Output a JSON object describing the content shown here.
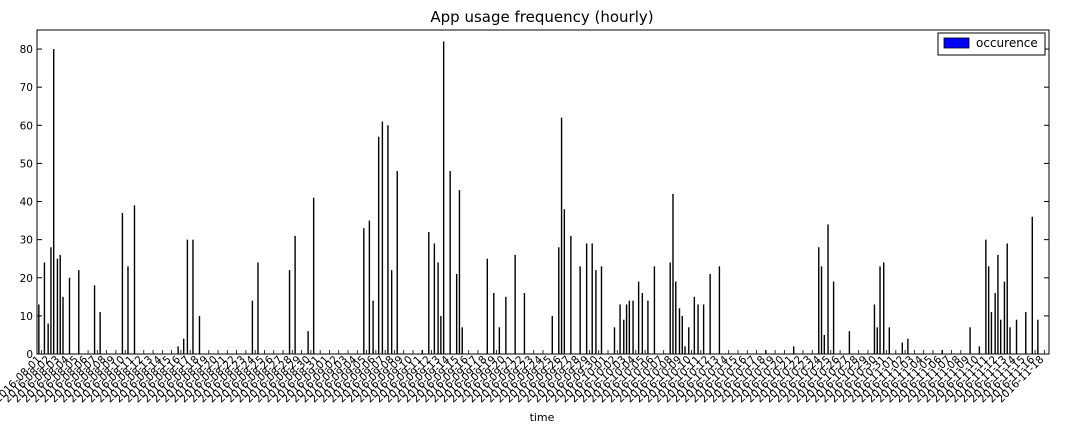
{
  "chart_data": {
    "type": "bar",
    "title": "App usage frequency (hourly)",
    "xlabel": "time",
    "ylabel": "",
    "ylim": [
      0,
      85
    ],
    "yticks": [
      0,
      10,
      20,
      30,
      40,
      50,
      60,
      70,
      80
    ],
    "legend": {
      "placement": "top-right",
      "label": "occurence",
      "color": "#0000ff"
    },
    "bar_color": "#000000",
    "grid": false,
    "x_tick_labels": [
      "2016-08-01",
      "2016-08-02",
      "2016-08-03",
      "2016-08-04",
      "2016-08-05",
      "2016-08-06",
      "2016-08-07",
      "2016-08-08",
      "2016-08-09",
      "2016-08-10",
      "2016-08-11",
      "2016-08-12",
      "2016-08-13",
      "2016-08-14",
      "2016-08-15",
      "2016-08-16",
      "2016-08-17",
      "2016-08-18",
      "2016-08-19",
      "2016-08-20",
      "2016-08-21",
      "2016-08-22",
      "2016-08-23",
      "2016-08-24",
      "2016-08-25",
      "2016-08-26",
      "2016-08-27",
      "2016-08-28",
      "2016-08-29",
      "2016-08-30",
      "2016-08-31",
      "2016-09-01",
      "2016-09-02",
      "2016-09-03",
      "2016-09-04",
      "2016-09-05",
      "2016-09-06",
      "2016-09-07",
      "2016-09-08",
      "2016-09-09",
      "2016-09-10",
      "2016-09-11",
      "2016-09-12",
      "2016-09-13",
      "2016-09-14",
      "2016-09-15",
      "2016-09-16",
      "2016-09-17",
      "2016-09-18",
      "2016-09-19",
      "2016-09-20",
      "2016-09-21",
      "2016-09-22",
      "2016-09-23",
      "2016-09-24",
      "2016-09-25",
      "2016-09-26",
      "2016-09-27",
      "2016-09-28",
      "2016-09-29",
      "2016-09-30",
      "2016-10-01",
      "2016-10-02",
      "2016-10-03",
      "2016-10-04",
      "2016-10-05",
      "2016-10-06",
      "2016-10-07",
      "2016-10-08",
      "2016-10-09",
      "2016-10-10",
      "2016-10-11",
      "2016-10-12",
      "2016-10-13",
      "2016-10-14",
      "2016-10-15",
      "2016-10-16",
      "2016-10-17",
      "2016-10-18",
      "2016-10-19",
      "2016-10-20",
      "2016-10-21",
      "2016-10-22",
      "2016-10-23",
      "2016-10-24",
      "2016-10-25",
      "2016-10-26",
      "2016-10-27",
      "2016-10-28",
      "2016-10-29",
      "2016-10-30",
      "2016-10-31",
      "2016-11-01",
      "2016-11-02",
      "2016-11-03",
      "2016-11-04",
      "2016-11-05",
      "2016-11-06",
      "2016-11-07",
      "2016-11-08",
      "2016-11-09",
      "2016-11-10",
      "2016-11-11",
      "2016-11-12",
      "2016-11-13",
      "2016-11-14",
      "2016-11-15",
      "2016-11-16",
      "2016-11-18"
    ],
    "values": [
      {
        "x": "2016-08-01",
        "y": 13
      },
      {
        "x": "2016-08-01",
        "y": 24
      },
      {
        "x": "2016-08-02",
        "y": 8
      },
      {
        "x": "2016-08-02",
        "y": 28
      },
      {
        "x": "2016-08-02",
        "y": 80
      },
      {
        "x": "2016-08-03",
        "y": 25
      },
      {
        "x": "2016-08-03",
        "y": 26
      },
      {
        "x": "2016-08-03",
        "y": 15
      },
      {
        "x": "2016-08-04",
        "y": 20
      },
      {
        "x": "2016-08-05",
        "y": 22
      },
      {
        "x": "2016-08-07",
        "y": 18
      },
      {
        "x": "2016-08-07",
        "y": 11
      },
      {
        "x": "2016-08-10",
        "y": 37
      },
      {
        "x": "2016-08-10",
        "y": 23
      },
      {
        "x": "2016-08-11",
        "y": 39
      },
      {
        "x": "2016-08-16",
        "y": 2
      },
      {
        "x": "2016-08-16",
        "y": 4
      },
      {
        "x": "2016-08-17",
        "y": 30
      },
      {
        "x": "2016-08-17",
        "y": 30
      },
      {
        "x": "2016-08-18",
        "y": 10
      },
      {
        "x": "2016-08-24",
        "y": 14
      },
      {
        "x": "2016-08-24",
        "y": 24
      },
      {
        "x": "2016-08-28",
        "y": 22
      },
      {
        "x": "2016-08-28",
        "y": 31
      },
      {
        "x": "2016-08-30",
        "y": 6
      },
      {
        "x": "2016-08-30",
        "y": 41
      },
      {
        "x": "2016-09-05",
        "y": 33
      },
      {
        "x": "2016-09-05",
        "y": 35
      },
      {
        "x": "2016-09-06",
        "y": 14
      },
      {
        "x": "2016-09-06",
        "y": 57
      },
      {
        "x": "2016-09-07",
        "y": 61
      },
      {
        "x": "2016-09-07",
        "y": 60
      },
      {
        "x": "2016-09-08",
        "y": 22
      },
      {
        "x": "2016-09-08",
        "y": 48
      },
      {
        "x": "2016-09-11",
        "y": 1
      },
      {
        "x": "2016-09-12",
        "y": 32
      },
      {
        "x": "2016-09-12",
        "y": 29
      },
      {
        "x": "2016-09-13",
        "y": 24
      },
      {
        "x": "2016-09-13",
        "y": 10
      },
      {
        "x": "2016-09-13",
        "y": 82
      },
      {
        "x": "2016-09-14",
        "y": 48
      },
      {
        "x": "2016-09-15",
        "y": 21
      },
      {
        "x": "2016-09-15",
        "y": 43
      },
      {
        "x": "2016-09-15",
        "y": 7
      },
      {
        "x": "2016-09-18",
        "y": 25
      },
      {
        "x": "2016-09-19",
        "y": 16
      },
      {
        "x": "2016-09-19",
        "y": 7
      },
      {
        "x": "2016-09-20",
        "y": 15
      },
      {
        "x": "2016-09-21",
        "y": 26
      },
      {
        "x": "2016-09-22",
        "y": 16
      },
      {
        "x": "2016-09-25",
        "y": 10
      },
      {
        "x": "2016-09-26",
        "y": 28
      },
      {
        "x": "2016-09-26",
        "y": 62
      },
      {
        "x": "2016-09-26",
        "y": 38
      },
      {
        "x": "2016-09-27",
        "y": 31
      },
      {
        "x": "2016-09-28",
        "y": 23
      },
      {
        "x": "2016-09-29",
        "y": 29
      },
      {
        "x": "2016-09-29",
        "y": 29
      },
      {
        "x": "2016-09-30",
        "y": 22
      },
      {
        "x": "2016-09-30",
        "y": 23
      },
      {
        "x": "2016-10-02",
        "y": 7
      },
      {
        "x": "2016-10-02",
        "y": 13
      },
      {
        "x": "2016-10-03",
        "y": 9
      },
      {
        "x": "2016-10-03",
        "y": 13
      },
      {
        "x": "2016-10-03",
        "y": 14
      },
      {
        "x": "2016-10-04",
        "y": 14
      },
      {
        "x": "2016-10-04",
        "y": 19
      },
      {
        "x": "2016-10-05",
        "y": 16
      },
      {
        "x": "2016-10-05",
        "y": 14
      },
      {
        "x": "2016-10-06",
        "y": 23
      },
      {
        "x": "2016-10-08",
        "y": 24
      },
      {
        "x": "2016-10-08",
        "y": 42
      },
      {
        "x": "2016-10-08",
        "y": 19
      },
      {
        "x": "2016-10-09",
        "y": 12
      },
      {
        "x": "2016-10-09",
        "y": 10
      },
      {
        "x": "2016-10-09",
        "y": 2
      },
      {
        "x": "2016-10-10",
        "y": 7
      },
      {
        "x": "2016-10-10",
        "y": 15
      },
      {
        "x": "2016-10-11",
        "y": 13
      },
      {
        "x": "2016-10-11",
        "y": 13
      },
      {
        "x": "2016-10-12",
        "y": 21
      },
      {
        "x": "2016-10-13",
        "y": 23
      },
      {
        "x": "2016-10-18",
        "y": 1
      },
      {
        "x": "2016-10-21",
        "y": 2
      },
      {
        "x": "2016-10-24",
        "y": 28
      },
      {
        "x": "2016-10-24",
        "y": 23
      },
      {
        "x": "2016-10-24",
        "y": 5
      },
      {
        "x": "2016-10-25",
        "y": 34
      },
      {
        "x": "2016-10-25",
        "y": 19
      },
      {
        "x": "2016-10-27",
        "y": 6
      },
      {
        "x": "2016-10-30",
        "y": 13
      },
      {
        "x": "2016-10-30",
        "y": 7
      },
      {
        "x": "2016-10-30",
        "y": 23
      },
      {
        "x": "2016-10-31",
        "y": 24
      },
      {
        "x": "2016-10-31",
        "y": 7
      },
      {
        "x": "2016-11-02",
        "y": 3
      },
      {
        "x": "2016-11-02",
        "y": 4
      },
      {
        "x": "2016-11-06",
        "y": 1
      },
      {
        "x": "2016-11-09",
        "y": 7
      },
      {
        "x": "2016-11-10",
        "y": 2
      },
      {
        "x": "2016-11-11",
        "y": 30
      },
      {
        "x": "2016-11-11",
        "y": 23
      },
      {
        "x": "2016-11-11",
        "y": 11
      },
      {
        "x": "2016-11-12",
        "y": 16
      },
      {
        "x": "2016-11-12",
        "y": 26
      },
      {
        "x": "2016-11-12",
        "y": 9
      },
      {
        "x": "2016-11-13",
        "y": 19
      },
      {
        "x": "2016-11-13",
        "y": 29
      },
      {
        "x": "2016-11-13",
        "y": 7
      },
      {
        "x": "2016-11-14",
        "y": 9
      },
      {
        "x": "2016-11-15",
        "y": 11
      },
      {
        "x": "2016-11-16",
        "y": 36
      },
      {
        "x": "2016-11-16",
        "y": 9
      }
    ]
  }
}
